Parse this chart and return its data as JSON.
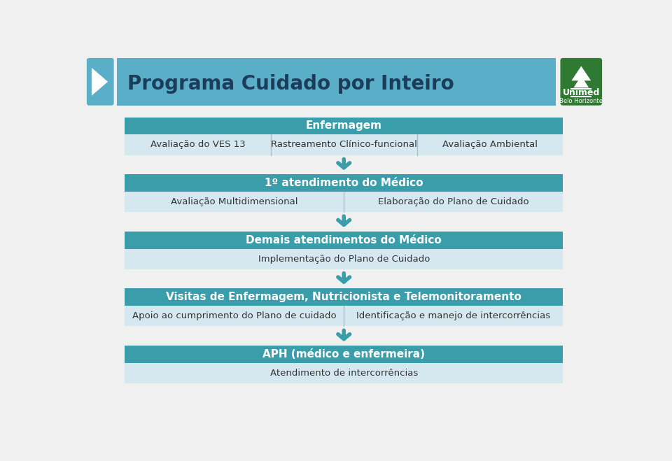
{
  "title": "Programa Cuidado por Inteiro",
  "header_bg": "#5baec8",
  "header_title_color": "#1c3d5a",
  "bg_color": "#f0f0f0",
  "teal_header": "#3a9eaa",
  "light_row": "#d6e8ef",
  "arrow_color": "#3a9eaa",
  "dark_green": "#2e7a32",
  "blocks": [
    {
      "header": "Enfermagem",
      "cols": [
        "Avaliação do VES 13",
        "Rastreamento Clínico-funcional",
        "Avaliação Ambiental"
      ],
      "n_cols": 3
    },
    {
      "header": "1º atendimento do Médico",
      "cols": [
        "Avaliação Multidimensional",
        "Elaboração do Plano de Cuidado"
      ],
      "n_cols": 2
    },
    {
      "header": "Demais atendimentos do Médico",
      "cols": [
        "Implementação do Plano de Cuidado"
      ],
      "n_cols": 1
    },
    {
      "header": "Visitas de Enfermagem, Nutricionista e Telemonitoramento",
      "cols": [
        "Apoio ao cumprimento do Plano de cuidado",
        "Identificação e manejo de intercorrências"
      ],
      "n_cols": 2
    },
    {
      "header": "APH (médico e enfermeira)",
      "cols": [
        "Atendimento de intercorrências"
      ],
      "n_cols": 1
    }
  ]
}
